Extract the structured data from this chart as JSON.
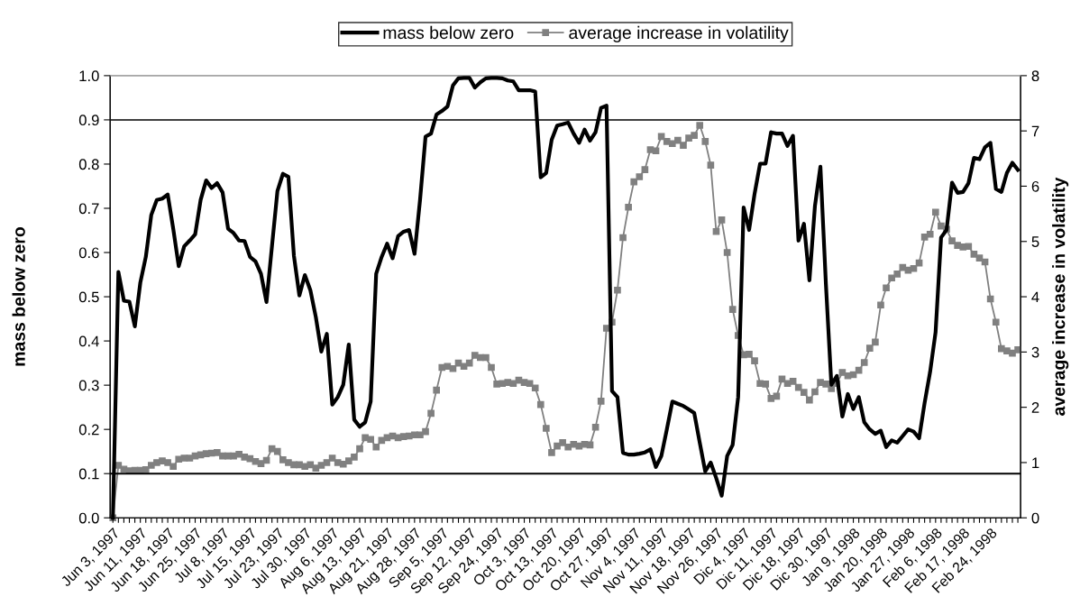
{
  "chart_data": {
    "type": "line",
    "ylabel": "mass below zero",
    "y2label": "average increase in volatility",
    "categories": [
      "Jun 3, 1997",
      null,
      null,
      null,
      null,
      "Jun 11, 1997",
      null,
      null,
      null,
      null,
      "Jun 18, 1997",
      null,
      null,
      null,
      null,
      "Jun 25, 1997",
      null,
      null,
      null,
      null,
      "Jul 8, 1997",
      null,
      null,
      null,
      null,
      "Jul 15, 1997",
      null,
      null,
      null,
      null,
      "Jul 23, 1997",
      null,
      null,
      null,
      null,
      "Jul 30, 1997",
      null,
      null,
      null,
      null,
      "Aug 6, 1997",
      null,
      null,
      null,
      null,
      "Aug 13, 1997",
      null,
      null,
      null,
      null,
      "Aug 21, 1997",
      null,
      null,
      null,
      null,
      "Aug 28, 1997",
      null,
      null,
      null,
      null,
      "Sep 5, 1997",
      null,
      null,
      null,
      null,
      "Sep 12, 1997",
      null,
      null,
      null,
      null,
      "Sep 24, 1997",
      null,
      null,
      null,
      null,
      "Oct 3, 1997",
      null,
      null,
      null,
      null,
      "Oct 13, 1997",
      null,
      null,
      null,
      null,
      "Oct 20, 1997",
      null,
      null,
      null,
      null,
      "Oct 27, 1997",
      null,
      null,
      null,
      null,
      "Nov 4, 1997",
      null,
      null,
      null,
      null,
      "Nov 11, 1997",
      null,
      null,
      null,
      null,
      "Nov 18, 1997",
      null,
      null,
      null,
      null,
      "Nov 26, 1997",
      null,
      null,
      null,
      null,
      "Dic 4, 1997",
      null,
      null,
      null,
      null,
      "Dic 11, 1997",
      null,
      null,
      null,
      null,
      "Dic 18, 1997",
      null,
      null,
      null,
      null,
      "Dic 30, 1997",
      null,
      null,
      null,
      null,
      "Jan 9, 1998",
      null,
      null,
      null,
      null,
      "Jan 20, 1998",
      null,
      null,
      null,
      null,
      "Jan 27, 1998",
      null,
      null,
      null,
      null,
      "Feb 6, 1998",
      null,
      null,
      null,
      null,
      "Feb 17, 1998",
      null,
      null,
      null,
      null,
      "Feb 24, 1998",
      null,
      null,
      null,
      null,
      null
    ],
    "series": [
      {
        "name": "mass below zero",
        "color": "#000000",
        "marker": "none",
        "values": [
          0.0,
          0.556,
          0.491,
          0.489,
          0.433,
          0.532,
          0.59,
          0.685,
          0.719,
          0.722,
          0.731,
          0.654,
          0.569,
          0.614,
          0.627,
          0.641,
          0.719,
          0.763,
          0.746,
          0.757,
          0.736,
          0.654,
          0.644,
          0.627,
          0.626,
          0.59,
          0.58,
          0.552,
          0.488,
          0.614,
          0.739,
          0.778,
          0.771,
          0.593,
          0.503,
          0.549,
          0.515,
          0.454,
          0.376,
          0.416,
          0.256,
          0.273,
          0.301,
          0.392,
          0.222,
          0.206,
          0.216,
          0.263,
          0.552,
          0.59,
          0.62,
          0.587,
          0.637,
          0.647,
          0.651,
          0.597,
          0.719,
          0.862,
          0.869,
          0.912,
          0.92,
          0.93,
          0.978,
          0.994,
          0.995,
          0.995,
          0.973,
          0.985,
          0.994,
          0.995,
          0.995,
          0.994,
          0.989,
          0.987,
          0.967,
          0.967,
          0.967,
          0.964,
          0.77,
          0.78,
          0.855,
          0.887,
          0.89,
          0.894,
          0.869,
          0.848,
          0.878,
          0.853,
          0.872,
          0.927,
          0.932,
          0.287,
          0.273,
          0.147,
          0.143,
          0.143,
          0.145,
          0.148,
          0.155,
          0.115,
          0.14,
          0.2,
          0.263,
          0.258,
          0.253,
          0.245,
          0.237,
          0.17,
          0.105,
          0.125,
          0.09,
          0.05,
          0.14,
          0.165,
          0.273,
          0.702,
          0.651,
          0.733,
          0.801,
          0.801,
          0.872,
          0.869,
          0.869,
          0.841,
          0.864,
          0.627,
          0.665,
          0.537,
          0.705,
          0.794,
          0.529,
          0.301,
          0.321,
          0.229,
          0.28,
          0.246,
          0.273,
          0.216,
          0.2,
          0.19,
          0.197,
          0.16,
          0.175,
          0.17,
          0.185,
          0.2,
          0.195,
          0.18,
          0.26,
          0.33,
          0.42,
          0.634,
          0.651,
          0.758,
          0.735,
          0.737,
          0.757,
          0.814,
          0.811,
          0.838,
          0.848,
          0.744,
          0.737,
          0.78,
          0.803,
          0.787
        ]
      },
      {
        "name": "average increase in volatility",
        "color": "#808080",
        "marker": "square",
        "axis": "y2",
        "values": [
          0,
          0.95,
          0.88,
          0.85,
          0.86,
          0.86,
          0.87,
          0.95,
          1.0,
          1.03,
          1.0,
          0.93,
          1.06,
          1.08,
          1.08,
          1.12,
          1.14,
          1.16,
          1.17,
          1.18,
          1.12,
          1.12,
          1.12,
          1.15,
          1.1,
          1.07,
          1.02,
          0.98,
          1.04,
          1.25,
          1.2,
          1.05,
          1.0,
          0.96,
          0.96,
          0.93,
          0.96,
          0.9,
          0.95,
          1.0,
          1.08,
          1.0,
          0.97,
          1.03,
          1.1,
          1.25,
          1.45,
          1.42,
          1.28,
          1.4,
          1.45,
          1.48,
          1.45,
          1.47,
          1.48,
          1.5,
          1.5,
          1.56,
          1.89,
          2.31,
          2.72,
          2.74,
          2.7,
          2.8,
          2.74,
          2.8,
          2.94,
          2.9,
          2.9,
          2.72,
          2.42,
          2.43,
          2.45,
          2.43,
          2.49,
          2.45,
          2.43,
          2.35,
          2.05,
          1.62,
          1.18,
          1.3,
          1.36,
          1.28,
          1.33,
          1.3,
          1.33,
          1.32,
          1.64,
          2.11,
          3.43,
          3.54,
          4.12,
          5.07,
          5.62,
          6.08,
          6.17,
          6.3,
          6.66,
          6.64,
          6.9,
          6.81,
          6.77,
          6.83,
          6.74,
          6.87,
          6.92,
          7.1,
          6.81,
          6.38,
          5.18,
          5.39,
          4.8,
          3.77,
          3.3,
          2.95,
          2.96,
          2.84,
          2.43,
          2.42,
          2.16,
          2.2,
          2.51,
          2.43,
          2.47,
          2.36,
          2.27,
          2.13,
          2.28,
          2.45,
          2.42,
          2.34,
          2.43,
          2.63,
          2.57,
          2.59,
          2.67,
          2.81,
          3.07,
          3.18,
          3.85,
          4.16,
          4.34,
          4.41,
          4.53,
          4.48,
          4.51,
          4.61,
          5.08,
          5.13,
          5.53,
          5.28,
          5.22,
          5.01,
          4.93,
          4.9,
          4.91,
          4.77,
          4.7,
          4.63,
          3.96,
          3.54,
          3.06,
          3.02,
          2.98,
          3.04
        ]
      }
    ],
    "ylim": [
      0,
      1
    ],
    "yticks": [
      {
        "value": 0,
        "label": "0.0"
      },
      {
        "value": 0.1,
        "label": "0.1"
      },
      {
        "value": 0.2,
        "label": "0.2"
      },
      {
        "value": 0.3,
        "label": "0.3"
      },
      {
        "value": 0.4,
        "label": "0.4"
      },
      {
        "value": 0.5,
        "label": "0.5"
      },
      {
        "value": 0.6,
        "label": "0.6"
      },
      {
        "value": 0.7,
        "label": "0.7"
      },
      {
        "value": 0.8,
        "label": "0.8"
      },
      {
        "value": 0.9,
        "label": "0.9"
      },
      {
        "value": 1,
        "label": "1.0"
      }
    ],
    "y2lim": [
      0,
      8
    ],
    "y2ticks": [
      0,
      1,
      2,
      3,
      4,
      5,
      6,
      7,
      8
    ],
    "ref_lines": [
      {
        "axis": "y",
        "value": 0.9,
        "color": "#404040"
      },
      {
        "axis": "y",
        "value": 0.1,
        "color": "#000000"
      }
    ],
    "grid": false,
    "legend": "top"
  }
}
